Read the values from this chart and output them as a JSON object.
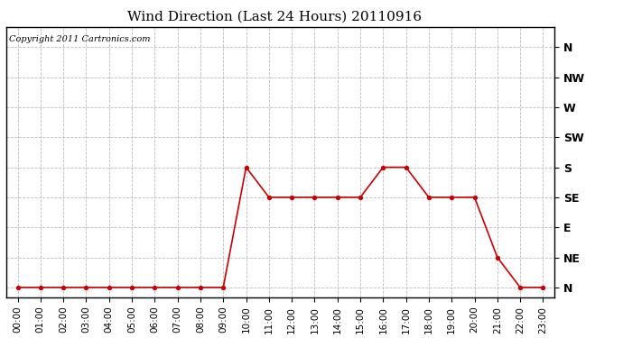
{
  "title": "Wind Direction (Last 24 Hours) 20110916",
  "copyright_text": "Copyright 2011 Cartronics.com",
  "x_labels": [
    "00:00",
    "01:00",
    "02:00",
    "03:00",
    "04:00",
    "05:00",
    "06:00",
    "07:00",
    "08:00",
    "09:00",
    "10:00",
    "11:00",
    "12:00",
    "13:00",
    "14:00",
    "15:00",
    "16:00",
    "17:00",
    "18:00",
    "19:00",
    "20:00",
    "21:00",
    "22:00",
    "23:00"
  ],
  "x_values": [
    0,
    1,
    2,
    3,
    4,
    5,
    6,
    7,
    8,
    9,
    10,
    11,
    12,
    13,
    14,
    15,
    16,
    17,
    18,
    19,
    20,
    21,
    22,
    23
  ],
  "y_values": [
    0,
    0,
    0,
    0,
    0,
    0,
    0,
    0,
    0,
    0,
    180,
    135,
    135,
    135,
    135,
    135,
    180,
    180,
    135,
    135,
    135,
    45,
    0,
    0
  ],
  "y_ticks": [
    0,
    45,
    90,
    135,
    180,
    225,
    270,
    315,
    360
  ],
  "y_tick_labels": [
    "N",
    "NE",
    "E",
    "SE",
    "S",
    "SW",
    "W",
    "NW",
    "N"
  ],
  "ylim": [
    -15,
    390
  ],
  "xlim": [
    -0.5,
    23.5
  ],
  "line_color": "#cc0000",
  "marker": "o",
  "marker_size": 3,
  "grid_color": "#bbbbbb",
  "background_color": "#ffffff",
  "title_fontsize": 11,
  "copyright_fontsize": 7,
  "tick_labelsize": 7.5,
  "ytick_labelsize": 9
}
